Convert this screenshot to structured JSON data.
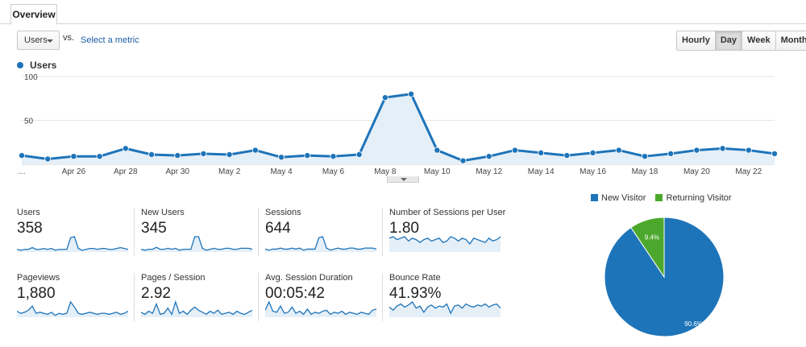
{
  "tabs": {
    "overview": "Overview"
  },
  "controls": {
    "metric_select": "Users",
    "vs": "vs.",
    "select_metric": "Select a metric",
    "granularity": [
      "Hourly",
      "Day",
      "Week",
      "Month"
    ],
    "granularity_active": "Day"
  },
  "chart_data": [
    {
      "type": "line",
      "series": [
        {
          "name": "Users",
          "color": "#1e74b9",
          "values": [
            10,
            6,
            9,
            9,
            18,
            11,
            10,
            12,
            11,
            16,
            8,
            10,
            9,
            11,
            76,
            80,
            16,
            4,
            9,
            16,
            13,
            10,
            13,
            16,
            9,
            12,
            16,
            18,
            16,
            12
          ]
        }
      ],
      "x_tick_labels": [
        "…",
        "Apr 26",
        "Apr 28",
        "Apr 30",
        "May 2",
        "May 4",
        "May 6",
        "May 8",
        "May 10",
        "May 12",
        "May 14",
        "May 16",
        "May 18",
        "May 20",
        "May 22"
      ],
      "y_tick_labels": [
        "100",
        "50"
      ],
      "ylim": [
        0,
        100
      ],
      "grid": true
    },
    {
      "type": "pie",
      "categories": [
        "New Visitor",
        "Returning Visitor"
      ],
      "values": [
        90.6,
        9.4
      ],
      "value_labels": [
        "90.6%",
        "9.4%"
      ],
      "colors": [
        "#1e74b9",
        "#4ca82c"
      ],
      "legend": "top"
    }
  ],
  "kpis": [
    {
      "label": "Users",
      "value": "358",
      "spark": [
        2,
        1,
        2,
        2,
        4,
        2,
        2,
        3,
        2,
        3,
        1,
        2,
        2,
        2,
        15,
        16,
        3,
        1,
        2,
        3,
        3,
        2,
        3,
        3,
        2,
        2,
        3,
        4,
        3,
        2
      ]
    },
    {
      "label": "New Users",
      "value": "345",
      "spark": [
        2,
        1,
        2,
        2,
        4,
        2,
        2,
        3,
        2,
        3,
        1,
        2,
        2,
        2,
        15,
        15,
        3,
        1,
        2,
        3,
        2,
        2,
        3,
        3,
        2,
        2,
        3,
        3,
        3,
        2
      ]
    },
    {
      "label": "Sessions",
      "value": "644",
      "spark": [
        2,
        1,
        2,
        2,
        3,
        2,
        2,
        3,
        2,
        3,
        1,
        2,
        2,
        2,
        13,
        14,
        3,
        1,
        2,
        3,
        2,
        2,
        3,
        3,
        2,
        2,
        3,
        3,
        3,
        2
      ]
    },
    {
      "label": "Number of Sessions per User",
      "value": "1.80",
      "spark": [
        9,
        10,
        8,
        9,
        10,
        7,
        9,
        8,
        6,
        8,
        9,
        7,
        8,
        9,
        6,
        7,
        10,
        9,
        7,
        9,
        8,
        5,
        9,
        8,
        7,
        6,
        9,
        7,
        8,
        10
      ]
    },
    {
      "label": "Pageviews",
      "value": "1,880",
      "spark": [
        5,
        3,
        4,
        6,
        10,
        3,
        4,
        3,
        2,
        4,
        1,
        3,
        2,
        3,
        14,
        9,
        3,
        2,
        3,
        4,
        3,
        2,
        3,
        3,
        2,
        3,
        4,
        2,
        3,
        5
      ]
    },
    {
      "label": "Pages / Session",
      "value": "2.92",
      "spark": [
        4,
        2,
        5,
        3,
        12,
        2,
        3,
        8,
        2,
        14,
        3,
        5,
        2,
        6,
        9,
        6,
        4,
        2,
        5,
        3,
        6,
        2,
        3,
        4,
        2,
        5,
        3,
        2,
        4,
        6
      ]
    },
    {
      "label": "Avg. Session Duration",
      "value": "00:05:42",
      "spark": [
        6,
        14,
        5,
        4,
        10,
        3,
        4,
        9,
        3,
        5,
        2,
        7,
        2,
        4,
        3,
        5,
        6,
        2,
        4,
        3,
        5,
        2,
        4,
        3,
        2,
        4,
        3,
        2,
        6,
        7
      ]
    },
    {
      "label": "Bounce Rate",
      "value": "41.93%",
      "spark": [
        9,
        6,
        10,
        12,
        9,
        11,
        14,
        8,
        10,
        4,
        9,
        11,
        8,
        10,
        9,
        12,
        3,
        10,
        11,
        8,
        12,
        10,
        9,
        11,
        10,
        12,
        9,
        11,
        12,
        8
      ]
    }
  ]
}
